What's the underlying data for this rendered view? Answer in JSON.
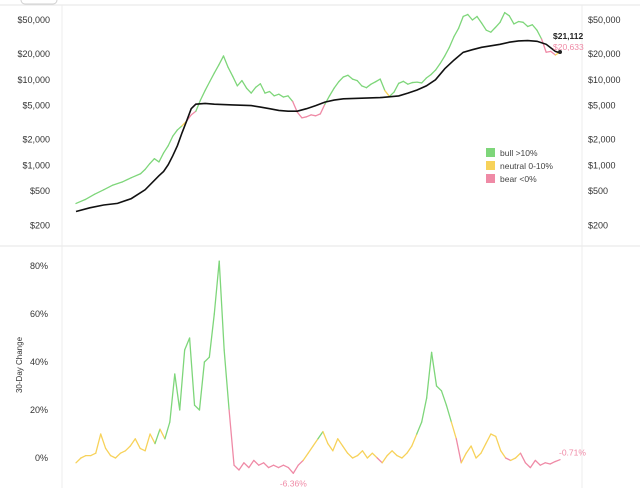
{
  "chart_data": [
    {
      "type": "line",
      "scale": "log",
      "y_ticks": [
        {
          "value": 200,
          "label": "$200"
        },
        {
          "value": 500,
          "label": "$500"
        },
        {
          "value": 1000,
          "label": "$1,000"
        },
        {
          "value": 2000,
          "label": "$2,000"
        },
        {
          "value": 5000,
          "label": "$5,000"
        },
        {
          "value": 10000,
          "label": "$10,000"
        },
        {
          "value": 20000,
          "label": "$20,000"
        },
        {
          "value": 50000,
          "label": "$50,000"
        }
      ],
      "ylim": [
        150,
        62000
      ],
      "legend": {
        "placement": "right",
        "items": [
          {
            "label": "bull >10%",
            "color": "#7ed67a"
          },
          {
            "label": "neutral 0-10%",
            "color": "#f7d25a"
          },
          {
            "label": "bear <0%",
            "color": "#ef8aa6"
          }
        ]
      },
      "end_labels": {
        "price": "$21,112",
        "average": "$20,633"
      },
      "series": [
        {
          "points": [
            [
              0,
              360
            ],
            [
              2,
              400
            ],
            [
              4,
              460
            ],
            [
              6,
              520
            ],
            [
              8,
              590
            ],
            [
              10,
              640
            ],
            [
              12,
              720
            ],
            [
              14,
              800
            ],
            [
              15,
              900
            ],
            [
              16,
              1050
            ],
            [
              17,
              1200
            ],
            [
              18,
              1100
            ],
            [
              19,
              1400
            ],
            [
              20,
              1700
            ],
            [
              21,
              2200
            ],
            [
              22,
              2600
            ],
            [
              23,
              2900
            ],
            [
              24,
              3300
            ],
            [
              25,
              3900
            ],
            [
              26,
              4300
            ],
            [
              27,
              5800
            ],
            [
              28,
              7500
            ],
            [
              29,
              9500
            ],
            [
              30,
              12000
            ],
            [
              31,
              15000
            ],
            [
              32,
              19000
            ],
            [
              33,
              14000
            ],
            [
              34,
              11000
            ],
            [
              35,
              8500
            ],
            [
              36,
              9800
            ],
            [
              37,
              8000
            ],
            [
              38,
              7000
            ],
            [
              39,
              8200
            ],
            [
              40,
              9000
            ],
            [
              41,
              7000
            ],
            [
              42,
              7300
            ],
            [
              43,
              6500
            ],
            [
              44,
              6800
            ],
            [
              45,
              6300
            ],
            [
              46,
              6500
            ],
            [
              47,
              5600
            ],
            [
              48,
              4200
            ],
            [
              49,
              3600
            ],
            [
              50,
              3700
            ],
            [
              51,
              3900
            ],
            [
              52,
              3800
            ],
            [
              53,
              4000
            ],
            [
              54,
              5200
            ],
            [
              55,
              6500
            ],
            [
              56,
              8000
            ],
            [
              57,
              9500
            ],
            [
              58,
              10800
            ],
            [
              59,
              11300
            ],
            [
              60,
              10200
            ],
            [
              61,
              9800
            ],
            [
              62,
              8500
            ],
            [
              63,
              8100
            ],
            [
              64,
              8900
            ],
            [
              65,
              9500
            ],
            [
              66,
              10200
            ],
            [
              67,
              7500
            ],
            [
              68,
              6400
            ],
            [
              69,
              7200
            ],
            [
              70,
              9100
            ],
            [
              71,
              9600
            ],
            [
              72,
              8900
            ],
            [
              73,
              9300
            ],
            [
              74,
              9400
            ],
            [
              75,
              9200
            ],
            [
              76,
              10500
            ],
            [
              77,
              11500
            ],
            [
              78,
              13000
            ],
            [
              79,
              15500
            ],
            [
              80,
              19000
            ],
            [
              81,
              24000
            ],
            [
              82,
              32000
            ],
            [
              83,
              40000
            ],
            [
              84,
              55000
            ],
            [
              85,
              58000
            ],
            [
              86,
              50000
            ],
            [
              87,
              55000
            ],
            [
              88,
              46000
            ],
            [
              89,
              38000
            ],
            [
              90,
              36000
            ],
            [
              91,
              41000
            ],
            [
              92,
              47000
            ],
            [
              93,
              61000
            ],
            [
              94,
              56000
            ],
            [
              95,
              45000
            ],
            [
              96,
              48000
            ],
            [
              97,
              47000
            ],
            [
              98,
              42000
            ],
            [
              99,
              44000
            ],
            [
              100,
              38000
            ],
            [
              101,
              30000
            ],
            [
              102,
              21000
            ],
            [
              103,
              21500
            ],
            [
              104,
              19500
            ],
            [
              105,
              21112
            ]
          ]
        },
        {
          "points": [
            [
              0,
              290
            ],
            [
              3,
              320
            ],
            [
              6,
              345
            ],
            [
              9,
              360
            ],
            [
              12,
              410
            ],
            [
              15,
              520
            ],
            [
              18,
              760
            ],
            [
              19,
              850
            ],
            [
              20,
              1020
            ],
            [
              21,
              1300
            ],
            [
              22,
              1700
            ],
            [
              23,
              2400
            ],
            [
              24,
              3300
            ],
            [
              25,
              4600
            ],
            [
              26,
              5200
            ],
            [
              28,
              5300
            ],
            [
              30,
              5200
            ],
            [
              34,
              5100
            ],
            [
              38,
              5000
            ],
            [
              40,
              4800
            ],
            [
              42,
              4600
            ],
            [
              44,
              4400
            ],
            [
              46,
              4300
            ],
            [
              48,
              4300
            ],
            [
              50,
              4600
            ],
            [
              52,
              5000
            ],
            [
              54,
              5500
            ],
            [
              56,
              5800
            ],
            [
              58,
              6000
            ],
            [
              62,
              6100
            ],
            [
              66,
              6200
            ],
            [
              70,
              6500
            ],
            [
              72,
              7000
            ],
            [
              74,
              7600
            ],
            [
              76,
              8500
            ],
            [
              78,
              10000
            ],
            [
              80,
              13500
            ],
            [
              82,
              17000
            ],
            [
              84,
              21000
            ],
            [
              86,
              22500
            ],
            [
              88,
              24000
            ],
            [
              90,
              25000
            ],
            [
              92,
              26000
            ],
            [
              94,
              27500
            ],
            [
              96,
              28500
            ],
            [
              98,
              28700
            ],
            [
              100,
              28200
            ],
            [
              102,
              26000
            ],
            [
              104,
              21500
            ],
            [
              105,
              20633
            ]
          ]
        }
      ]
    },
    {
      "type": "line",
      "ylabel": "30-Day Change",
      "y_ticks": [
        {
          "value": 0,
          "label": "0%"
        },
        {
          "value": 20,
          "label": "20%"
        },
        {
          "value": 40,
          "label": "40%"
        },
        {
          "value": 60,
          "label": "60%"
        },
        {
          "value": 80,
          "label": "80%"
        }
      ],
      "ylim": [
        -10,
        85
      ],
      "labels": {
        "min": "-6.36%",
        "last": "-0.71%"
      },
      "series": [
        {
          "points": [
            [
              0,
              -2
            ],
            [
              1,
              0
            ],
            [
              2,
              1
            ],
            [
              3,
              1
            ],
            [
              4,
              2
            ],
            [
              5,
              10
            ],
            [
              6,
              4
            ],
            [
              7,
              1
            ],
            [
              8,
              0
            ],
            [
              9,
              2
            ],
            [
              10,
              3
            ],
            [
              11,
              5
            ],
            [
              12,
              8
            ],
            [
              13,
              4
            ],
            [
              14,
              3
            ],
            [
              15,
              10
            ],
            [
              16,
              6
            ],
            [
              17,
              12
            ],
            [
              18,
              8
            ],
            [
              19,
              15
            ],
            [
              20,
              35
            ],
            [
              21,
              20
            ],
            [
              22,
              45
            ],
            [
              23,
              50
            ],
            [
              24,
              22
            ],
            [
              25,
              20
            ],
            [
              26,
              40
            ],
            [
              27,
              42
            ],
            [
              28,
              60
            ],
            [
              29,
              82
            ],
            [
              30,
              45
            ],
            [
              31,
              20
            ],
            [
              32,
              -3
            ],
            [
              33,
              -5
            ],
            [
              34,
              -2
            ],
            [
              35,
              -4
            ],
            [
              36,
              -1
            ],
            [
              37,
              -3
            ],
            [
              38,
              -2
            ],
            [
              39,
              -4
            ],
            [
              40,
              -3
            ],
            [
              41,
              -4
            ],
            [
              42,
              -3
            ],
            [
              43,
              -4
            ],
            [
              44,
              -6.36
            ],
            [
              45,
              -3
            ],
            [
              46,
              -1
            ],
            [
              47,
              2
            ],
            [
              48,
              5
            ],
            [
              49,
              8
            ],
            [
              50,
              11
            ],
            [
              51,
              6
            ],
            [
              52,
              3
            ],
            [
              53,
              8
            ],
            [
              54,
              5
            ],
            [
              55,
              2
            ],
            [
              56,
              0
            ],
            [
              57,
              1
            ],
            [
              58,
              3
            ],
            [
              59,
              0
            ],
            [
              60,
              2
            ],
            [
              61,
              0
            ],
            [
              62,
              -2
            ],
            [
              63,
              1
            ],
            [
              64,
              3
            ],
            [
              65,
              1
            ],
            [
              66,
              0
            ],
            [
              67,
              2
            ],
            [
              68,
              5
            ],
            [
              69,
              10
            ],
            [
              70,
              15
            ],
            [
              71,
              25
            ],
            [
              72,
              44
            ],
            [
              73,
              30
            ],
            [
              74,
              28
            ],
            [
              75,
              22
            ],
            [
              76,
              15
            ],
            [
              77,
              8
            ],
            [
              78,
              -2
            ],
            [
              79,
              2
            ],
            [
              80,
              5
            ],
            [
              81,
              0
            ],
            [
              82,
              2
            ],
            [
              83,
              6
            ],
            [
              84,
              10
            ],
            [
              85,
              9
            ],
            [
              86,
              3
            ],
            [
              87,
              0
            ],
            [
              88,
              -1
            ],
            [
              89,
              0
            ],
            [
              90,
              2
            ],
            [
              91,
              -2
            ],
            [
              92,
              -4
            ],
            [
              93,
              -1
            ],
            [
              94,
              -3
            ],
            [
              95,
              -2
            ],
            [
              96,
              -2.5
            ],
            [
              97,
              -1.5
            ],
            [
              98,
              -0.71
            ]
          ]
        }
      ]
    }
  ]
}
